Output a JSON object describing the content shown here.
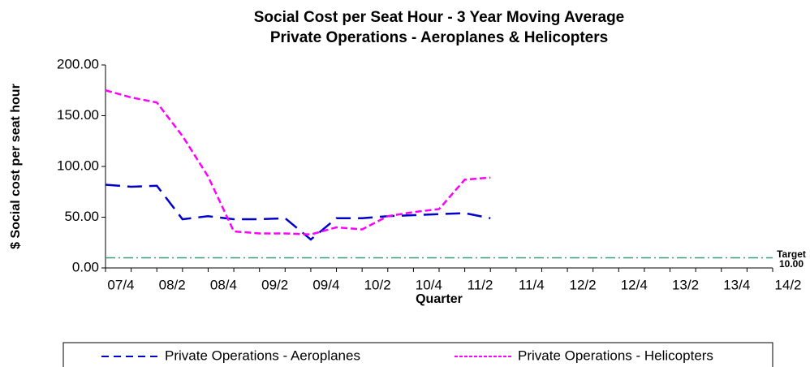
{
  "chart_data": {
    "type": "line",
    "title": "Social Cost per Seat Hour - 3 Year Moving Average",
    "subtitle": "Private Operations - Aeroplanes & Helicopters",
    "x_label": "Quarter",
    "y_label": "$ Social cost per seat hour",
    "categories": [
      "07/4",
      null,
      "08/2",
      null,
      "08/4",
      null,
      "09/2",
      null,
      "09/4",
      null,
      "10/2",
      null,
      "10/4",
      null,
      "11/2",
      null,
      "11/4",
      null,
      "12/2",
      null,
      "12/4",
      null,
      "13/2",
      null,
      "13/4",
      null,
      "14/2"
    ],
    "series": [
      {
        "name": "Private Operations - Aeroplanes",
        "color": "#0000cc",
        "dash": "18 9",
        "values": [
          82,
          80,
          81,
          48,
          51,
          48,
          48,
          49,
          28,
          49,
          49,
          51,
          52,
          53,
          54,
          49,
          null,
          null,
          null,
          null,
          null,
          null,
          null,
          null,
          null,
          null,
          null
        ]
      },
      {
        "name": "Private Operations - Helicopters",
        "color": "#ff00ff",
        "dash": "8 4",
        "values": [
          175,
          168,
          163,
          130,
          90,
          36,
          34,
          34,
          33,
          40,
          38,
          51,
          55,
          58,
          87,
          89,
          null,
          null,
          null,
          null,
          null,
          null,
          null,
          null,
          null,
          null,
          null
        ]
      }
    ],
    "target": {
      "name": "Target",
      "value": 10,
      "value_label": "10.00",
      "color": "#3a9a7a"
    },
    "ylim": [
      0,
      200
    ],
    "yticks": [
      {
        "value": 0,
        "label": "0.00"
      },
      {
        "value": 50,
        "label": "50.00"
      },
      {
        "value": 100,
        "label": "100.00"
      },
      {
        "value": 150,
        "label": "150.00"
      },
      {
        "value": 200,
        "label": "200.00"
      }
    ],
    "legend": "bottom"
  }
}
